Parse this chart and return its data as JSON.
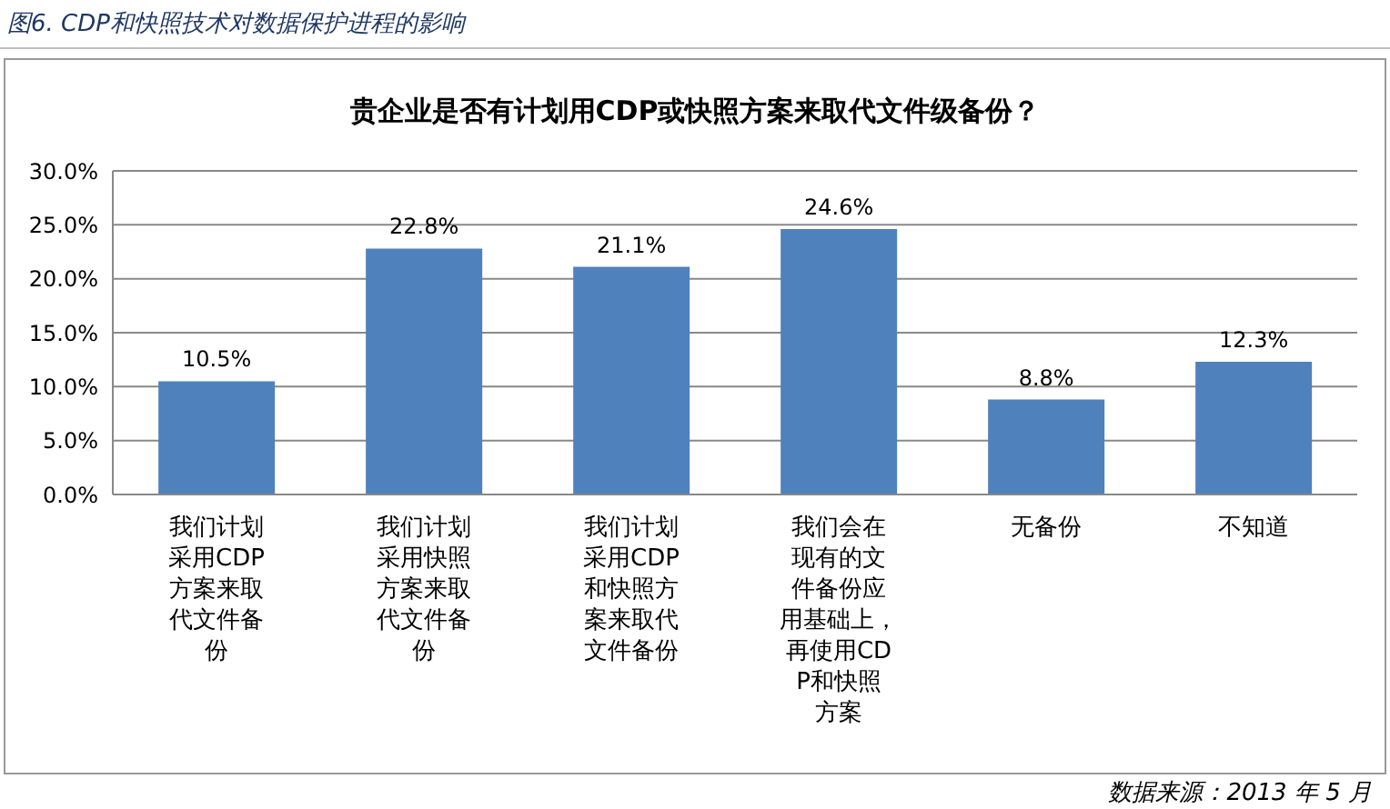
{
  "chart_data": {
    "type": "bar",
    "title": "贵企业是否有计划用CDP或快照方案来取代文件级备份？",
    "subtitle": "图6. CDP和快照技术对数据保护进程的影响",
    "categories": [
      "我们计划采用CDP方案来取代文件备份",
      "我们计划采用快照方案来取代文件备份",
      "我们计划采用CDP和快照方案来取代文件备份",
      "我们会在现有的文件备份应用基础上，再使用CDP和快照方案",
      "无备份",
      "不知道"
    ],
    "values": [
      10.5,
      22.8,
      21.1,
      24.6,
      8.8,
      12.3
    ],
    "value_labels": [
      "10.5%",
      "22.8%",
      "21.1%",
      "24.6%",
      "8.8%",
      "12.3%"
    ],
    "color": "#4f81bd",
    "ylim": [
      0,
      30
    ],
    "yticks": [
      {
        "value": 0,
        "label": "0.0%"
      },
      {
        "value": 5,
        "label": "5.0%"
      },
      {
        "value": 10,
        "label": "10.0%"
      },
      {
        "value": 15,
        "label": "15.0%"
      },
      {
        "value": 20,
        "label": "20.0%"
      },
      {
        "value": 25,
        "label": "25.0%"
      },
      {
        "value": 30,
        "label": "30.0%"
      }
    ],
    "grid": "y",
    "legend": false,
    "annotations": [
      "数据来源：2013 年 5 月"
    ]
  }
}
